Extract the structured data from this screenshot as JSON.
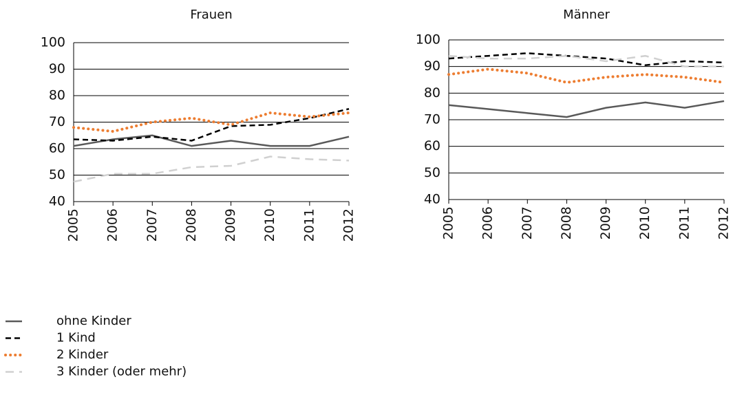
{
  "chart_data": [
    {
      "type": "line",
      "title": "Frauen",
      "x": [
        2005,
        2006,
        2007,
        2008,
        2009,
        2010,
        2011,
        2012
      ],
      "xlim": [
        2005,
        2012
      ],
      "xticks": [
        2005,
        2006,
        2007,
        2008,
        2009,
        2010,
        2011,
        2012
      ],
      "ylim": [
        40,
        100
      ],
      "yticks": [
        40,
        50,
        60,
        70,
        80,
        90,
        100
      ],
      "grid": true,
      "series": [
        {
          "name": "ohne Kinder",
          "color": "#595959",
          "dash": "solid",
          "values": [
            61,
            63.5,
            65,
            61,
            63,
            61,
            61,
            64.5
          ]
        },
        {
          "name": "1 Kind",
          "color": "#000000",
          "dash": "dashed",
          "values": [
            63.5,
            63,
            64.5,
            63,
            68.5,
            69,
            71.5,
            75
          ]
        },
        {
          "name": "2 Kinder",
          "color": "#ed7d31",
          "dash": "dotted",
          "values": [
            68,
            66.5,
            70,
            71.5,
            69,
            73.5,
            72,
            73.5
          ]
        },
        {
          "name": "3 Kinder (oder mehr)",
          "color": "#d0d0d0",
          "dash": "longdash",
          "values": [
            47.5,
            50.5,
            50.5,
            53,
            53.5,
            57,
            56,
            55.5
          ]
        }
      ]
    },
    {
      "type": "line",
      "title": "Männer",
      "x": [
        2005,
        2006,
        2007,
        2008,
        2009,
        2010,
        2011,
        2012
      ],
      "xlim": [
        2005,
        2012
      ],
      "xticks": [
        2005,
        2006,
        2007,
        2008,
        2009,
        2010,
        2011,
        2012
      ],
      "ylim": [
        40,
        100
      ],
      "yticks": [
        40,
        50,
        60,
        70,
        80,
        90,
        100
      ],
      "grid": true,
      "series": [
        {
          "color": "#595959",
          "dash": "solid",
          "values": [
            75.5,
            74,
            72.5,
            71,
            74.5,
            76.5,
            74.5,
            77
          ]
        },
        {
          "color": "#000000",
          "dash": "dashed",
          "values": [
            93,
            94,
            95,
            94,
            93,
            90.5,
            92,
            91.5
          ]
        },
        {
          "color": "#ed7d31",
          "dash": "dotted",
          "values": [
            87,
            89,
            87.5,
            84,
            86,
            87,
            86,
            84
          ]
        },
        {
          "color": "#d0d0d0",
          "dash": "longdash",
          "values": [
            94,
            93,
            93,
            94,
            92,
            94,
            90,
            90
          ]
        }
      ]
    }
  ]
}
